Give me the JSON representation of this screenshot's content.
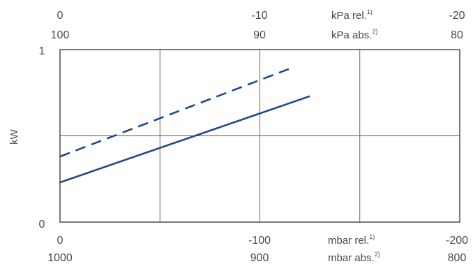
{
  "chart_data": {
    "type": "line",
    "ylabel": "kW",
    "ylim": [
      0,
      1
    ],
    "y_ticks": [
      "0",
      "1"
    ],
    "grid": true,
    "axes": {
      "top_rel": {
        "unit": "kPa rel.",
        "sup": "1)",
        "range": [
          0,
          -20
        ],
        "ticks": [
          "0",
          "-10",
          "-20"
        ]
      },
      "top_abs": {
        "unit": "kPa abs.",
        "sup": "2)",
        "range": [
          100,
          80
        ],
        "ticks": [
          "100",
          "90",
          "80"
        ]
      },
      "bottom_rel": {
        "unit": "mbar rel.",
        "sup": "1)",
        "range": [
          0,
          -200
        ],
        "ticks": [
          "0",
          "-100",
          "-200"
        ]
      },
      "bottom_abs": {
        "unit": "mbar abs.",
        "sup": "2)",
        "range": [
          1000,
          800
        ],
        "ticks": [
          "1000",
          "900",
          "800"
        ]
      }
    },
    "series": [
      {
        "style": "dashed",
        "color": "#1f4a8a",
        "x": [
          0,
          -115
        ],
        "y": [
          0.38,
          0.89
        ]
      },
      {
        "style": "solid",
        "color": "#1f4a8a",
        "x": [
          0,
          -125
        ],
        "y": [
          0.23,
          0.73
        ]
      }
    ]
  }
}
